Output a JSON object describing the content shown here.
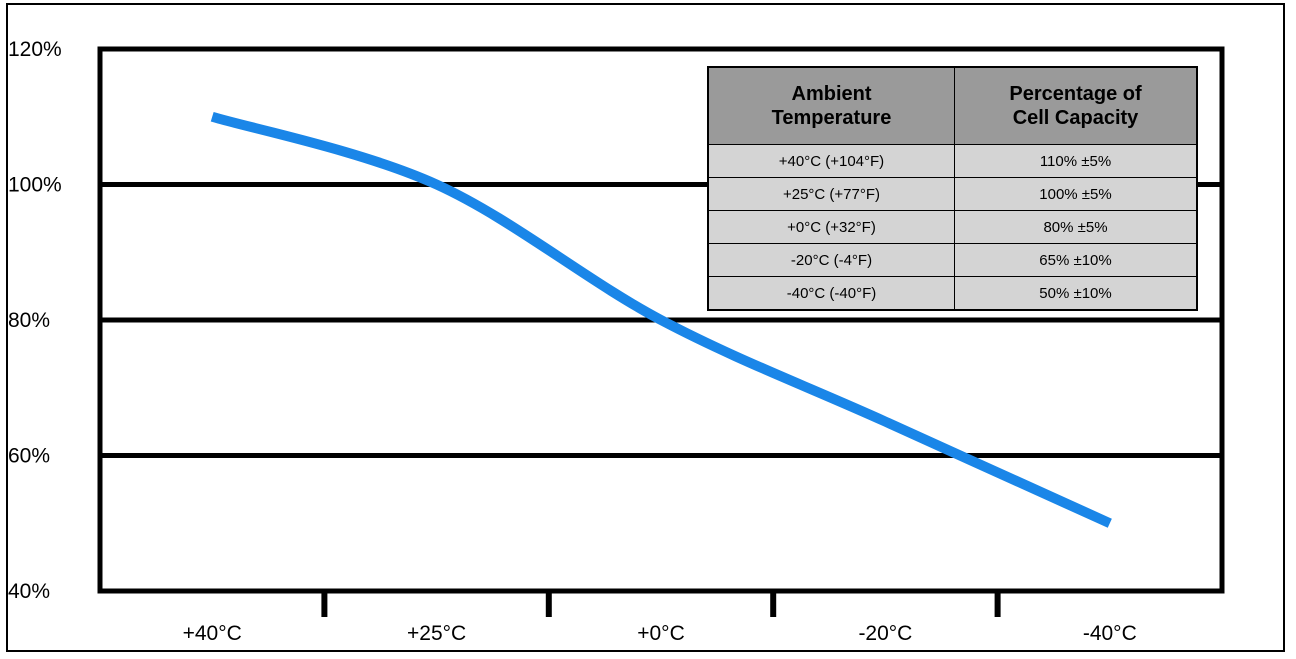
{
  "chart_data": {
    "type": "line",
    "title": "",
    "xlabel": "",
    "ylabel": "",
    "categories": [
      "+40°C",
      "+25°C",
      "+0°C",
      "-20°C",
      "-40°C"
    ],
    "y_tick_labels": [
      "120%",
      "100%",
      "80%",
      "60%",
      "40%"
    ],
    "y_ticks": [
      120,
      100,
      80,
      60,
      40
    ],
    "ylim": [
      40,
      120
    ],
    "grid": true,
    "series": [
      {
        "values": [
          110,
          100,
          80,
          65,
          50
        ],
        "color": "#1a86e8"
      }
    ],
    "table": {
      "headers": [
        [
          "Ambient",
          "Temperature"
        ],
        [
          "Percentage of",
          "Cell Capacity"
        ]
      ],
      "rows": [
        [
          "+40°C  (+104°F)",
          "110% ±5%"
        ],
        [
          "+25°C (+77°F)",
          "100% ±5%"
        ],
        [
          "+0°C (+32°F)",
          "80% ±5%"
        ],
        [
          "-20°C (-4°F)",
          "65% ±10%"
        ],
        [
          "-40°C (-40°F)",
          "50% ±10%"
        ]
      ],
      "position": "top-right"
    }
  }
}
